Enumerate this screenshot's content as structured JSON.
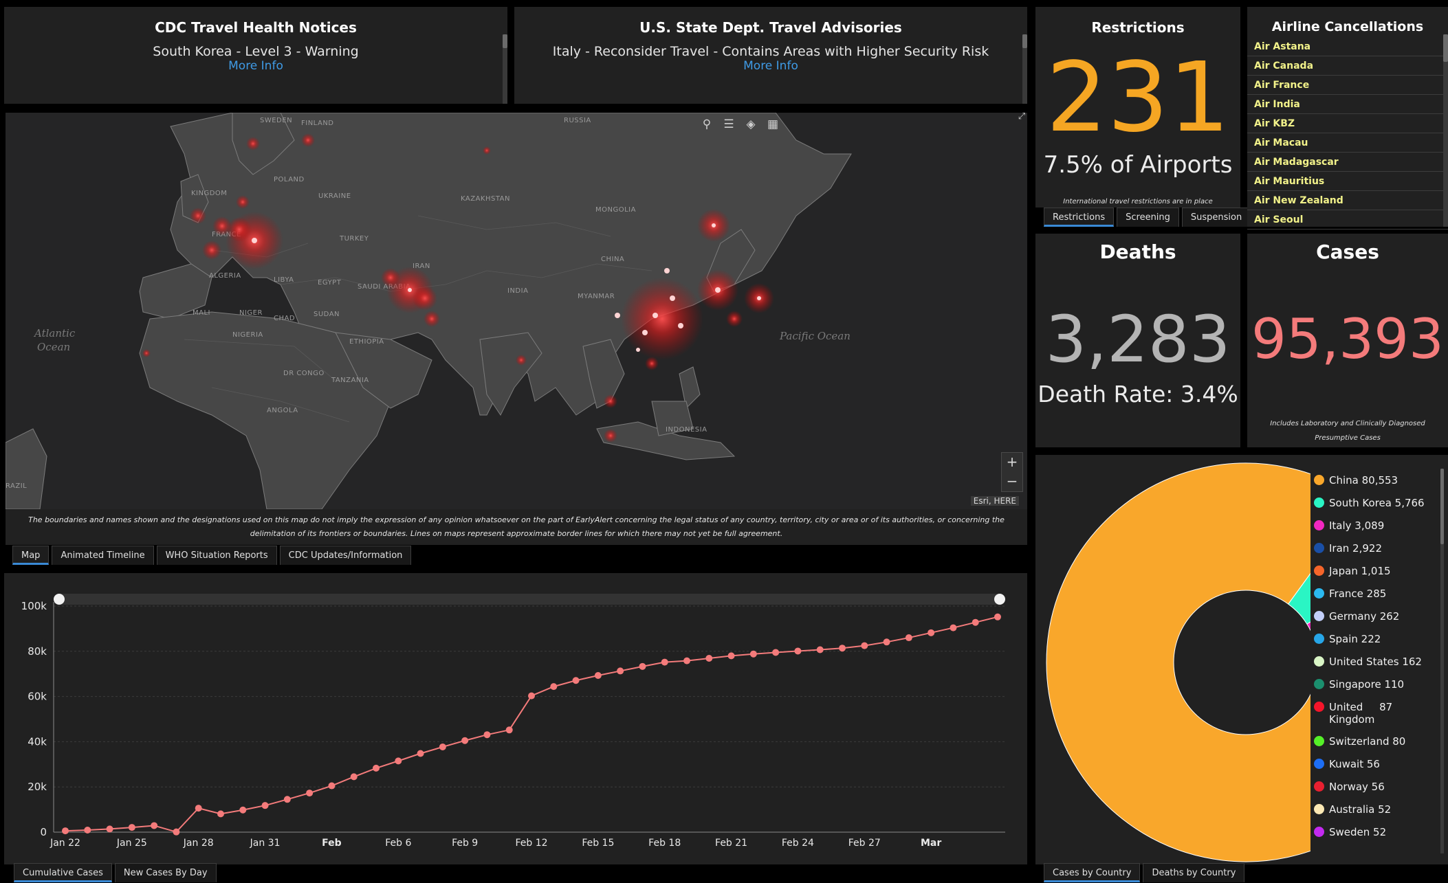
{
  "cdc": {
    "title": "CDC Travel Health Notices",
    "notice": "South Korea - Level 3 - Warning",
    "link": "More Info"
  },
  "state": {
    "title": "U.S. State Dept. Travel Advisories",
    "notice": "Italy - Reconsider Travel - Contains Areas with Higher Security Risk",
    "link": "More Info"
  },
  "restrictions": {
    "title": "Restrictions",
    "count": "231",
    "percent": "7.5% of Airports",
    "note": "International travel restrictions are in place",
    "tabs": [
      "Restrictions",
      "Screening",
      "Suspension"
    ]
  },
  "airlines": {
    "title": "Airline Cancellations",
    "items": [
      "Air Astana",
      "Air Canada",
      "Air France",
      "Air India",
      "Air KBZ",
      "Air Macau",
      "Air Madagascar",
      "Air Mauritius",
      "Air New Zealand",
      "Air Seoul"
    ]
  },
  "deaths": {
    "title": "Deaths",
    "count": "3,283",
    "rate": "Death Rate: 3.4%"
  },
  "cases": {
    "title": "Cases",
    "count": "95,393",
    "note": "Includes Laboratory and Clinically Diagnosed Presumptive Cases"
  },
  "map": {
    "labels": {
      "russia": "RUSSIA",
      "sweden": "SWEDEN",
      "finland": "FINLAND",
      "poland": "POLAND",
      "ukraine": "UKRAINE",
      "kazakhstan": "KAZAKHSTAN",
      "mongolia": "MONGOLIA",
      "china": "CHINA",
      "india": "INDIA",
      "turkey": "TURKEY",
      "saudi": "SAUDI ARABIA",
      "egypt": "EGYPT",
      "libya": "LIBYA",
      "algeria": "ALGERIA",
      "mali": "MALI",
      "niger": "NIGER",
      "chad": "CHAD",
      "sudan": "SUDAN",
      "nigeria": "NIGERIA",
      "ethiopia": "ETHIOPIA",
      "drcongo": "DR CONGO",
      "tanzania": "TANZANIA",
      "angola": "ANGOLA",
      "indonesia": "INDONESIA",
      "myanmar": "MYANMAR",
      "france": "FRANCE",
      "kingdom": "KINGDOM",
      "brazil": "RAZIL",
      "iran": "IRAN",
      "atlantic1": "Atlantic",
      "atlantic2": "Ocean",
      "pacific": "Pacific Ocean"
    },
    "attribution": "Esri, HERE",
    "disclaimer": "The boundaries and names shown and the designations used on this map do not imply the expression of any opinion whatsoever on the part of EarlyAlert concerning the legal status of any country, territory, city or area or of its authorities, or concerning the delimitation of its frontiers or boundaries. Lines on maps represent approximate border lines for which there may not yet be full agreement.",
    "zoom_in": "+",
    "zoom_out": "−",
    "tabs": [
      "Map",
      "Animated Timeline",
      "WHO Situation Reports",
      "CDC Updates/Information"
    ]
  },
  "timeline_tabs": [
    "Cumulative Cases",
    "New Cases By Day"
  ],
  "pie_tabs": [
    "Cases by Country",
    "Deaths by Country"
  ],
  "colors": {
    "accent_orange": "#f5a623",
    "death_gray": "#b4b4b4",
    "cases_pink": "#f47b7b",
    "link_blue": "#3f9be6",
    "airline_yellow": "#f2f28a"
  },
  "chart_data": [
    {
      "type": "line",
      "y_tick_labels": [
        "0",
        "20k",
        "40k",
        "60k",
        "80k",
        "100k"
      ],
      "x_tick_labels": [
        "Jan 22",
        "Jan 25",
        "Jan 28",
        "Jan 31",
        "Feb",
        "Feb 6",
        "Feb 9",
        "Feb 12",
        "Feb 15",
        "Feb 18",
        "Feb 21",
        "Feb 24",
        "Feb 27",
        "Mar"
      ],
      "bold_ticks": [
        "Feb",
        "Mar"
      ],
      "ylim": [
        0,
        100000
      ],
      "grid": true,
      "series": [
        {
          "color": "#f47b7b",
          "values": [
            580,
            920,
            1400,
            2100,
            2900,
            100,
            10600,
            8100,
            9800,
            11800,
            14500,
            17300,
            20500,
            24500,
            28300,
            31500,
            34800,
            37700,
            40500,
            43100,
            45200,
            60300,
            64400,
            67100,
            69300,
            71300,
            73300,
            75200,
            75800,
            76900,
            78000,
            78800,
            79500,
            80100,
            80700,
            81400,
            82500,
            84100,
            86000,
            88200,
            90400,
            92800,
            95200
          ]
        }
      ]
    },
    {
      "type": "pie",
      "donut": true,
      "labels": [
        "China",
        "South Korea",
        "Italy",
        "Iran",
        "Japan",
        "France",
        "Germany",
        "Spain",
        "United States",
        "Singapore",
        "United Kingdom",
        "Switzerland",
        "Kuwait",
        "Norway",
        "Australia",
        "Sweden"
      ],
      "values": [
        80553,
        5766,
        3089,
        2922,
        1015,
        285,
        262,
        222,
        162,
        110,
        87,
        80,
        56,
        56,
        52,
        52
      ],
      "display_values": [
        "80,553",
        "5,766",
        "3,089",
        "2,922",
        "1,015",
        "285",
        "262",
        "222",
        "162",
        "110",
        "87",
        "80",
        "56",
        "56",
        "52",
        "52"
      ],
      "colors": [
        "#f9a72b",
        "#2af5c4",
        "#f227c1",
        "#1a4fa6",
        "#f5652a",
        "#2bb9f0",
        "#c3cffa",
        "#27a6e8",
        "#d9f5c6",
        "#1b8f6e",
        "#f5152a",
        "#55f028",
        "#1d6ef5",
        "#e82030",
        "#fbe8b4",
        "#c32af0"
      ],
      "legend_position": "right"
    }
  ]
}
